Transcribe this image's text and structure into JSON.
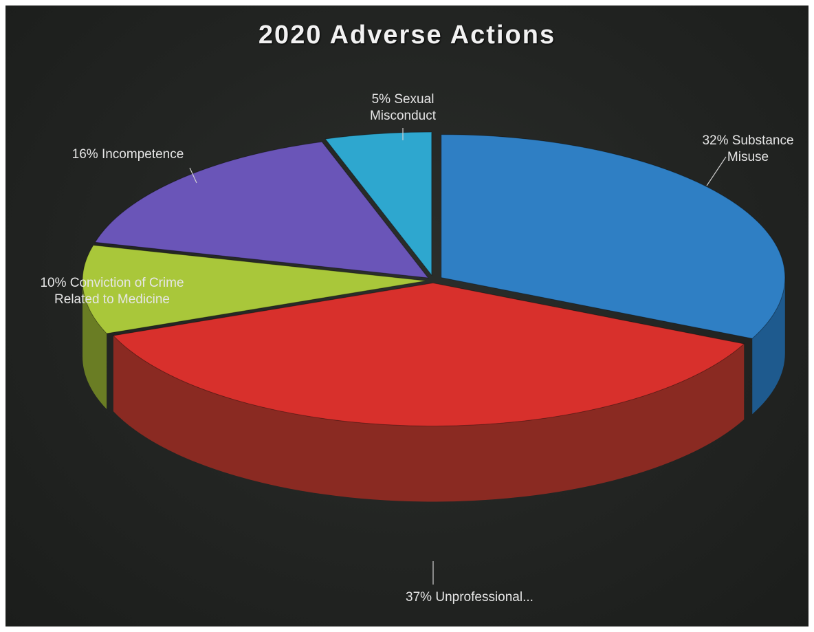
{
  "chart_data": {
    "type": "pie",
    "title": "2020 Adverse Actions",
    "slices": [
      {
        "label_lines": [
          "32%  Substance",
          "Misuse"
        ],
        "value": 32,
        "color": "#2f7fc4",
        "side": "#1e5a8e"
      },
      {
        "label_lines": [
          "37% Unprofessional..."
        ],
        "value": 37,
        "color": "#d8302c",
        "side": "#8a2a22"
      },
      {
        "label_lines": [
          "10% Conviction of Crime",
          "Related to Medicine"
        ],
        "value": 10,
        "color": "#a9c73a",
        "side": "#6a7d24"
      },
      {
        "label_lines": [
          "16% Incompetence"
        ],
        "value": 16,
        "color": "#6a55b8",
        "side": "#3e3378"
      },
      {
        "label_lines": [
          "5% Sexual",
          "Misconduct"
        ],
        "value": 5,
        "color": "#2ea7cf",
        "side": "#1c6d88"
      }
    ]
  }
}
